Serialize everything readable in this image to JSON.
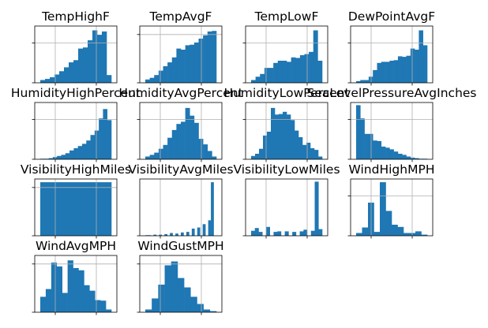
{
  "chart_data": [
    {
      "type": "bar",
      "title": "TempHighF",
      "grid": true,
      "yticks": 2,
      "bars": [
        0.05,
        0.07,
        0.1,
        0.15,
        0.21,
        0.28,
        0.37,
        0.41,
        0.62,
        0.64,
        0.77,
        0.95,
        0.87,
        0.93,
        0.14
      ]
    },
    {
      "type": "bar",
      "title": "TempAvgF",
      "grid": true,
      "yticks": 1,
      "bars": [
        0.06,
        0.09,
        0.14,
        0.22,
        0.3,
        0.37,
        0.46,
        0.62,
        0.6,
        0.68,
        0.69,
        0.73,
        0.8,
        0.86,
        0.93,
        0.94
      ]
    },
    {
      "type": "bar",
      "title": "TempLowF",
      "grid": true,
      "yticks": 2,
      "bars": [
        0.05,
        0.11,
        0.16,
        0.27,
        0.27,
        0.36,
        0.4,
        0.4,
        0.38,
        0.46,
        0.45,
        0.5,
        0.52,
        0.56,
        0.95,
        0.4
      ]
    },
    {
      "type": "bar",
      "title": "DewPointAvgF",
      "grid": true,
      "yticks": 2,
      "bars": [
        0.03,
        0.05,
        0.05,
        0.11,
        0.23,
        0.36,
        0.38,
        0.38,
        0.4,
        0.41,
        0.48,
        0.47,
        0.49,
        0.62,
        0.6,
        0.95,
        0.68
      ]
    },
    {
      "type": "bar",
      "title": "HumidityHighPercent",
      "grid": true,
      "yticks": 2,
      "bars": [
        0.01,
        0.01,
        0.02,
        0.04,
        0.06,
        0.08,
        0.11,
        0.16,
        0.2,
        0.24,
        0.28,
        0.34,
        0.44,
        0.52,
        0.74,
        0.91,
        0.71
      ]
    },
    {
      "type": "bar",
      "title": "HumidityAvgPercent",
      "grid": true,
      "yticks": 2,
      "bars": [
        0.05,
        0.08,
        0.12,
        0.19,
        0.26,
        0.39,
        0.53,
        0.64,
        0.68,
        0.93,
        0.79,
        0.66,
        0.37,
        0.27,
        0.15,
        0.05
      ]
    },
    {
      "type": "bar",
      "title": "HumidityLowPercent",
      "grid": true,
      "yticks": 2,
      "bars": [
        0.06,
        0.1,
        0.19,
        0.43,
        0.5,
        0.93,
        0.81,
        0.82,
        0.86,
        0.81,
        0.71,
        0.52,
        0.4,
        0.26,
        0.3,
        0.2,
        0.17,
        0.05
      ]
    },
    {
      "type": "bar",
      "title": "SeaLevelPressureAvgInches",
      "grid": true,
      "yticks": 2,
      "bars": [
        0.98,
        0.74,
        0.46,
        0.46,
        0.34,
        0.33,
        0.23,
        0.21,
        0.18,
        0.14,
        0.1,
        0.08,
        0.05,
        0.03,
        0.02,
        0.01,
        0.01
      ]
    },
    {
      "type": "bar",
      "title": "VisibilityHighMiles",
      "grid": true,
      "yticks": 1,
      "bars": [
        0.97
      ]
    },
    {
      "type": "bar",
      "title": "VisibilityAvgMiles",
      "grid": true,
      "yticks": 0,
      "bars": [
        0.01,
        0.01,
        0.0,
        0.02,
        0.0,
        0.02,
        0.0,
        0.03,
        0.0,
        0.05,
        0.0,
        0.04,
        0.0,
        0.06,
        0.0,
        0.07,
        0.0,
        0.13,
        0.0,
        0.15,
        0.0,
        0.21,
        0.0,
        0.28,
        0.97,
        0.0
      ]
    },
    {
      "type": "bar",
      "title": "VisibilityLowMiles",
      "grid": true,
      "yticks": 0,
      "bars": [
        0.09,
        0.14,
        0.07,
        0.0,
        0.16,
        0.0,
        0.07,
        0.08,
        0.0,
        0.08,
        0.0,
        0.07,
        0.0,
        0.08,
        0.11,
        0.0,
        0.09,
        0.98,
        0.12
      ]
    },
    {
      "type": "bar",
      "title": "WindHighMPH",
      "grid": true,
      "yticks": 2,
      "bars": [
        0.05,
        0.15,
        0.6,
        0.07,
        0.97,
        0.45,
        0.2,
        0.16,
        0.05,
        0.05,
        0.08,
        0.02
      ]
    },
    {
      "type": "bar",
      "title": "WindAvgMPH",
      "grid": true,
      "yticks": 1,
      "bars": [
        0.28,
        0.42,
        0.9,
        0.83,
        0.35,
        0.94,
        0.8,
        0.76,
        0.49,
        0.39,
        0.22,
        0.21,
        0.05
      ]
    },
    {
      "type": "bar",
      "title": "WindGustMPH",
      "grid": true,
      "yticks": 1,
      "bars": [
        0.05,
        0.25,
        0.5,
        0.85,
        0.92,
        0.62,
        0.45,
        0.28,
        0.15,
        0.05,
        0.02
      ]
    }
  ]
}
